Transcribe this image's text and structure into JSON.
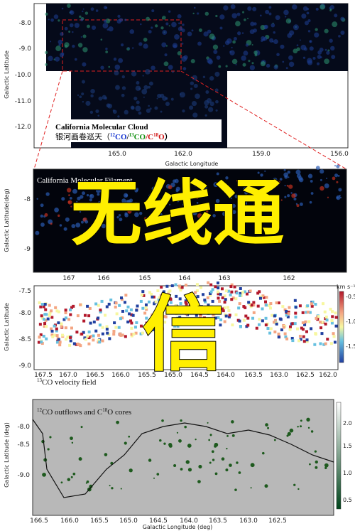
{
  "panels": [
    {
      "ylabel": "Galactic Latitude",
      "xlabel": "Galactic Longitude",
      "yticks": [
        "-8.0",
        "-9.0",
        "-10.0",
        "-11.0",
        "-12.0"
      ],
      "xticks": [
        "165.0",
        "162.0",
        "159.0",
        "156.0"
      ],
      "title": "California Molecular Cloud",
      "subtitle": [
        "银河画卷巡天（",
        "12",
        "CO",
        "/",
        "13",
        "CO",
        "/C",
        "18",
        "O",
        "）"
      ]
    },
    {
      "ylabel": "Galactic Latitude(deg)",
      "title": "California Molecular Filament",
      "yticks": [
        "-8",
        "-9"
      ],
      "xticks": [
        "167",
        "166",
        "165",
        "164",
        "163",
        "162"
      ]
    },
    {
      "ylabel": "Galactic Latitude",
      "colorbar_unit": "km s⁻¹",
      "colorbar_ticks": [
        "-0.5",
        "-1.0",
        "-1.5"
      ],
      "yticks": [
        "-7.5",
        "-8.0",
        "-8.5",
        "-9.0"
      ],
      "xticks": [
        "167.5",
        "167.0",
        "166.5",
        "166.0",
        "165.5",
        "165.0",
        "164.5",
        "164.0",
        "163.5",
        "163.0",
        "162.5",
        "162.0"
      ],
      "title": [
        "13",
        "CO velocity field"
      ]
    },
    {
      "ylabel": "Galactic Latitude (deg)",
      "xlabel": "Galactic Longitude (deg)",
      "colorbar_ticks": [
        "2.0",
        "1.5",
        "1.0",
        "0.5"
      ],
      "yticks": [
        "-8.0",
        "-8.5",
        "-9.0"
      ],
      "xticks": [
        "166.5",
        "166.0",
        "165.5",
        "165.0",
        "164.5",
        "164.0",
        "163.5",
        "163.0",
        "162.5"
      ],
      "title": [
        "12",
        "CO outflows and C",
        "18",
        "O cores"
      ]
    }
  ],
  "overlay": {
    "line1": "无线通",
    "line2": "信"
  }
}
